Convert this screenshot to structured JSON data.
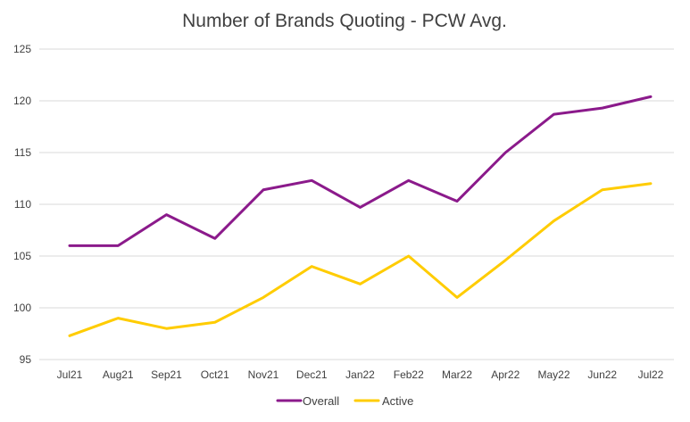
{
  "chart_data": {
    "type": "line",
    "title": "Number of Brands Quoting - PCW Avg.",
    "xlabel": "",
    "ylabel": "",
    "categories": [
      "Jul21",
      "Aug21",
      "Sep21",
      "Oct21",
      "Nov21",
      "Dec21",
      "Jan22",
      "Feb22",
      "Mar22",
      "Apr22",
      "May22",
      "Jun22",
      "Jul22"
    ],
    "ylim": [
      95,
      125
    ],
    "yticks": [
      95,
      100,
      105,
      110,
      115,
      120,
      125
    ],
    "grid": true,
    "legend_position": "bottom",
    "series": [
      {
        "name": "Overall",
        "color": "#8B1A8B",
        "values": [
          106.0,
          106.0,
          109.0,
          106.7,
          111.4,
          112.3,
          109.7,
          112.3,
          110.3,
          115.0,
          118.7,
          119.3,
          120.4
        ]
      },
      {
        "name": "Active",
        "color": "#FFCC00",
        "values": [
          97.3,
          99.0,
          98.0,
          98.6,
          101.0,
          104.0,
          102.3,
          105.0,
          101.0,
          104.6,
          108.4,
          111.4,
          112.0
        ]
      }
    ]
  }
}
